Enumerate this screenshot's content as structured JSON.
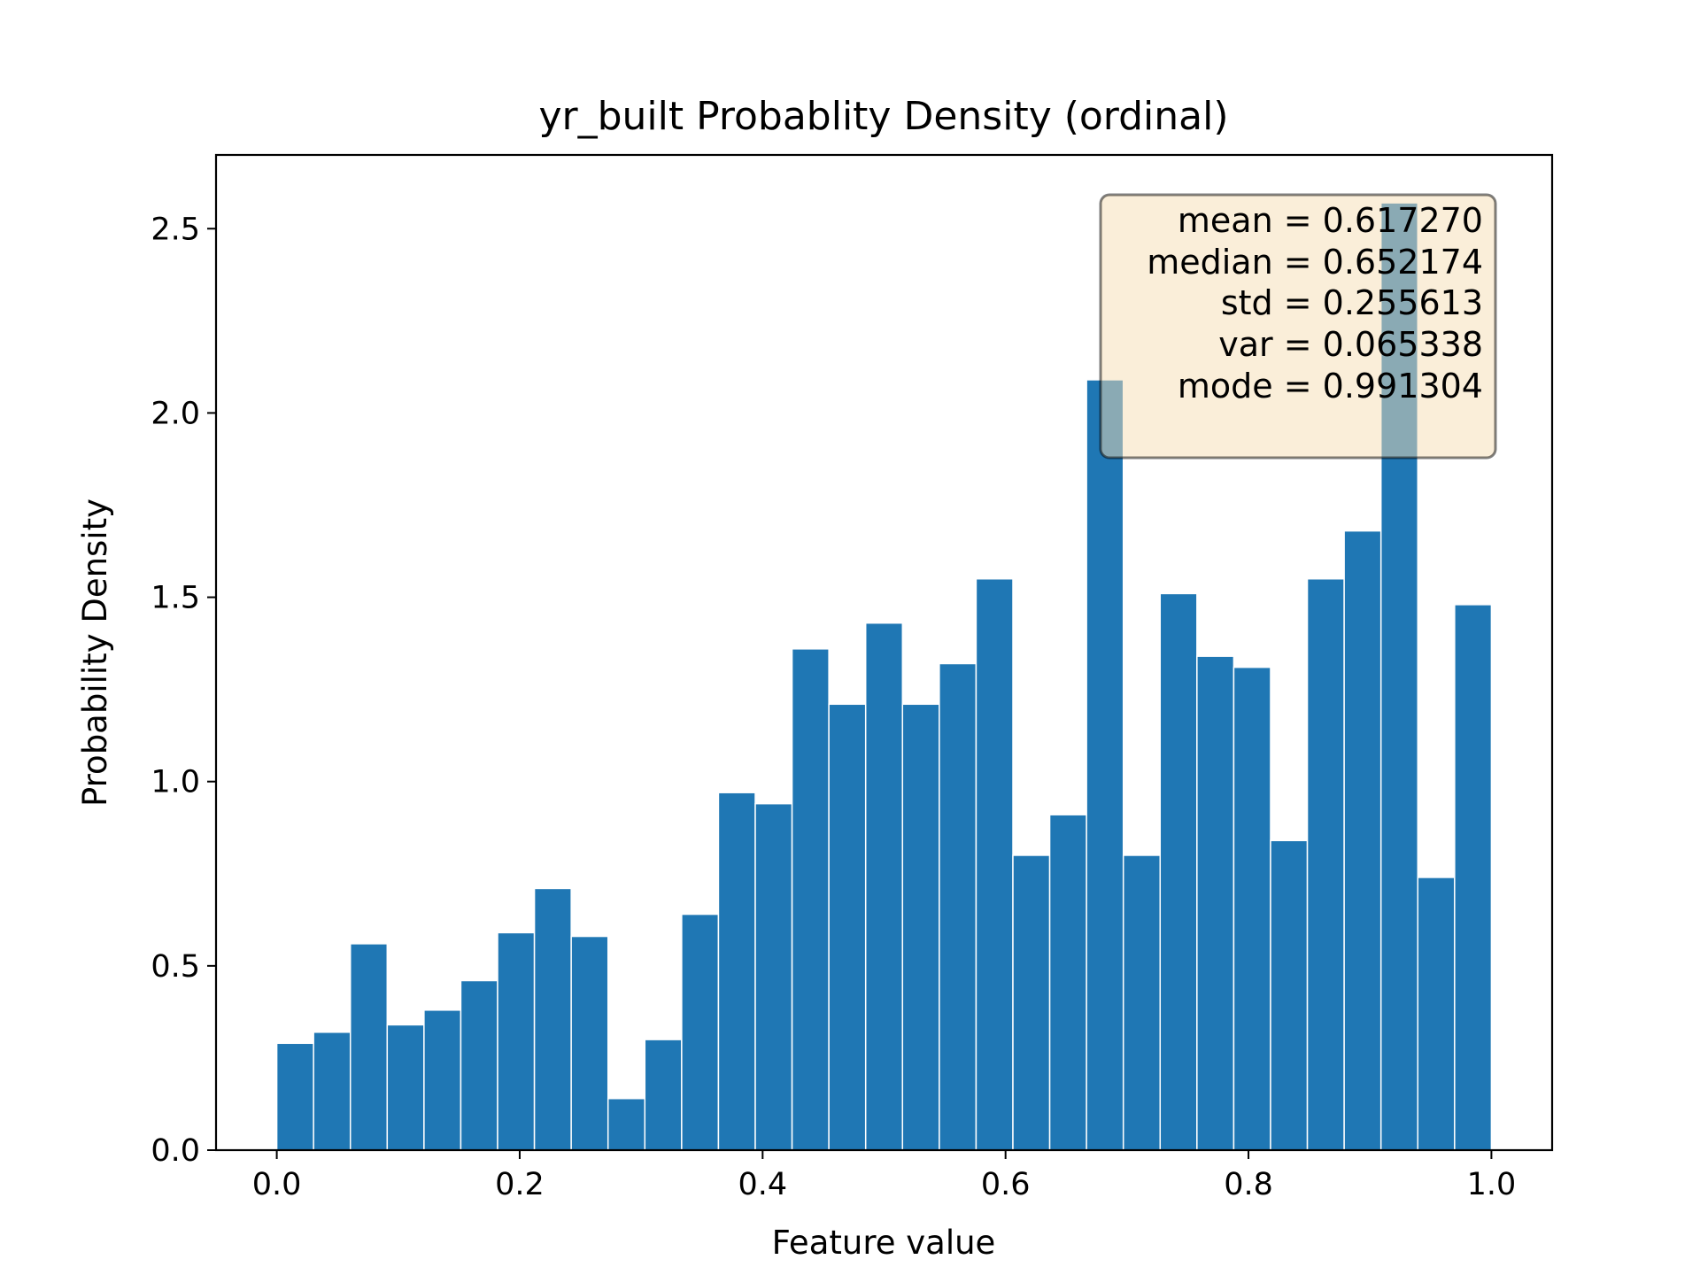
{
  "chart_data": {
    "type": "bar",
    "title": "yr_built Probablity Density (ordinal)",
    "xlabel": "Feature value",
    "ylabel": "Probability Density",
    "xlim": [
      -0.05,
      1.05
    ],
    "ylim": [
      0,
      2.7
    ],
    "xticks": [
      0.0,
      0.2,
      0.4,
      0.6,
      0.8,
      1.0
    ],
    "xtick_labels": [
      "0.0",
      "0.2",
      "0.4",
      "0.6",
      "0.8",
      "1.0"
    ],
    "yticks": [
      0.0,
      0.5,
      1.0,
      1.5,
      2.0,
      2.5
    ],
    "ytick_labels": [
      "0.0",
      "0.5",
      "1.0",
      "1.5",
      "2.0",
      "2.5"
    ],
    "bin_edges": [
      0.0,
      0.030303,
      0.060606,
      0.090909,
      0.121212,
      0.151515,
      0.181818,
      0.212121,
      0.242424,
      0.272727,
      0.30303,
      0.333333,
      0.363636,
      0.393939,
      0.424242,
      0.454545,
      0.484848,
      0.515152,
      0.545455,
      0.575758,
      0.606061,
      0.636364,
      0.666667,
      0.69697,
      0.727273,
      0.757576,
      0.787879,
      0.818182,
      0.848485,
      0.878788,
      0.909091,
      0.939394,
      0.969697,
      1.0
    ],
    "values": [
      0.29,
      0.32,
      0.56,
      0.34,
      0.38,
      0.46,
      0.59,
      0.71,
      0.58,
      0.14,
      0.3,
      0.64,
      0.97,
      0.94,
      1.36,
      1.21,
      1.43,
      1.21,
      1.32,
      1.55,
      0.8,
      0.91,
      2.09,
      0.8,
      1.51,
      1.34,
      1.31,
      0.84,
      1.55,
      1.68,
      2.57,
      0.74,
      1.48
    ],
    "bar_color": "#1f77b4",
    "grid": false,
    "stats_box": {
      "lines": [
        "mean = 0.617270",
        "median = 0.652174",
        "std = 0.255613",
        "var = 0.065338",
        "mode = 0.991304"
      ],
      "placement": "top-right",
      "facecolor": "#f5deb3"
    }
  }
}
